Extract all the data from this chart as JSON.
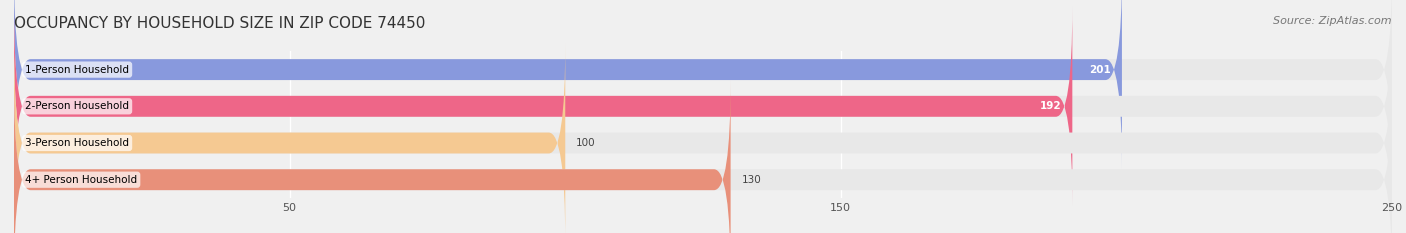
{
  "title": "OCCUPANCY BY HOUSEHOLD SIZE IN ZIP CODE 74450",
  "source": "Source: ZipAtlas.com",
  "categories": [
    "1-Person Household",
    "2-Person Household",
    "3-Person Household",
    "4+ Person Household"
  ],
  "values": [
    201,
    192,
    100,
    130
  ],
  "bar_colors": [
    "#8899dd",
    "#ee6688",
    "#f5c992",
    "#e8907a"
  ],
  "label_colors": [
    "white",
    "white",
    "#555555",
    "#555555"
  ],
  "xlim": [
    0,
    250
  ],
  "xticks": [
    50,
    150,
    250
  ],
  "background_color": "#f0f0f0",
  "bar_background_color": "#e8e8e8",
  "title_fontsize": 11,
  "source_fontsize": 8,
  "bar_height": 0.55,
  "figsize": [
    14.06,
    2.33
  ],
  "dpi": 100
}
